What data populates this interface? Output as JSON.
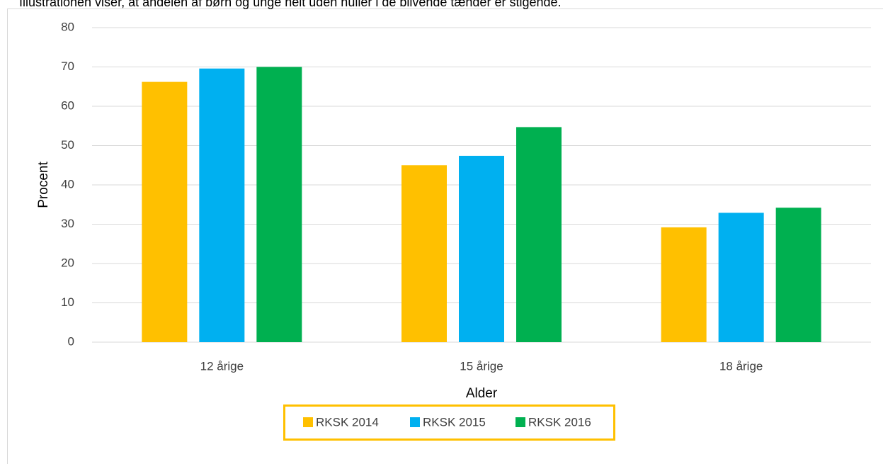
{
  "chart_data": {
    "type": "bar",
    "caption": "Illustrationen viser, at andelen af børn og unge helt uden huller i de blivende tænder er stigende.",
    "x_label": "Alder",
    "y_label": "Procent",
    "categories": [
      "12 årige",
      "15 årige",
      "18 årige"
    ],
    "series": [
      {
        "name": "RKSK 2014",
        "color": "#ffc000",
        "values": [
          66.2,
          45.0,
          29.2
        ]
      },
      {
        "name": "RKSK 2015",
        "color": "#00b0f0",
        "values": [
          69.6,
          47.4,
          32.9
        ]
      },
      {
        "name": "RKSK 2016",
        "color": "#00b050",
        "values": [
          70.0,
          54.7,
          34.2
        ]
      }
    ],
    "ylim": [
      0,
      80
    ],
    "yticks": [
      0,
      10,
      20,
      30,
      40,
      50,
      60,
      70,
      80
    ],
    "grid": true,
    "legend": "bottom"
  }
}
